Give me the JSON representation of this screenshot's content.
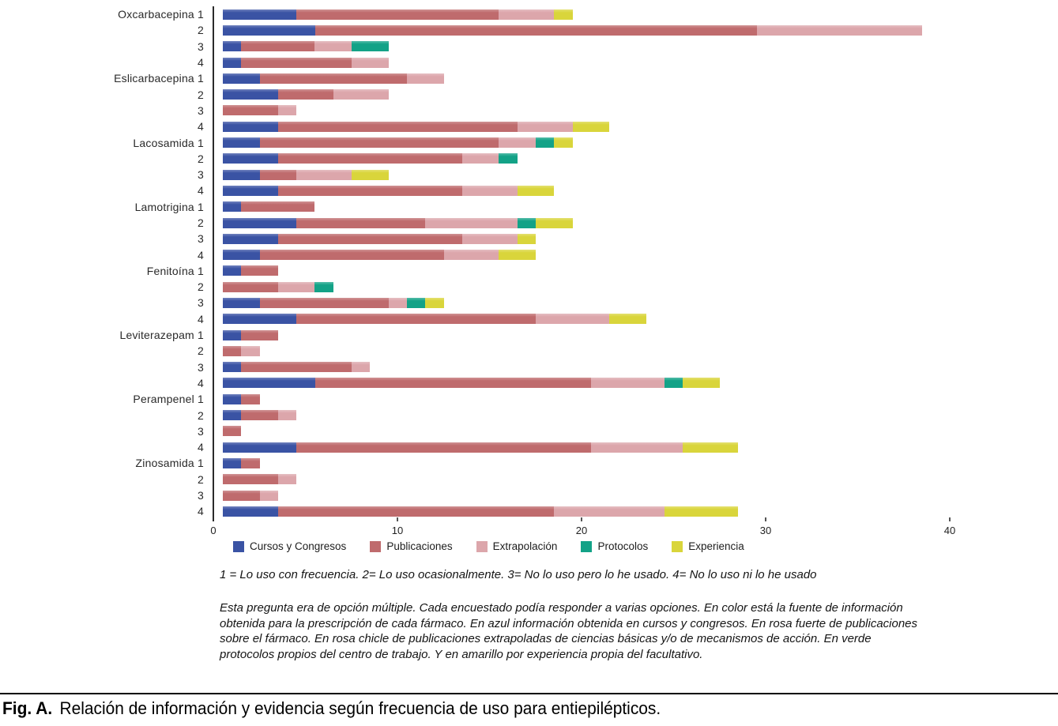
{
  "figure": {
    "footnote": "1 = Lo uso con frecuencia. 2= Lo uso ocasionalmente. 3= No lo uso pero lo he usado. 4= No lo uso ni lo he usado",
    "description": "Esta pregunta era de opción múltiple. Cada encuestado podía responder a varias opciones. En color está la fuente de información obtenida para la prescripción de cada fármaco. En azul información obtenida en cursos y congresos. En rosa fuerte de publicaciones sobre el fármaco. En rosa chicle de publicaciones extrapoladas de ciencias básicas y/o de mecanismos de acción. En verde protocolos propios del centro de trabajo. Y en amarillo por experiencia propia del facultativo.",
    "caption_prefix": "Fig. A.",
    "caption_text": "Relación de información y evidencia según frecuencia de uso para entiepilépticos."
  },
  "chart_data": {
    "type": "bar",
    "orientation": "horizontal",
    "stacked": true,
    "title": "",
    "xlabel": "",
    "ylabel": "",
    "xlim": [
      0,
      40
    ],
    "x_ticks": [
      0,
      10,
      20,
      30,
      40
    ],
    "grid": false,
    "legend_position": "bottom",
    "row_labels": [
      "1",
      "2",
      "3",
      "4"
    ],
    "series": [
      {
        "name": "Cursos y Congresos",
        "color": "#3a53a4"
      },
      {
        "name": "Publicaciones",
        "color": "#bf6b6d"
      },
      {
        "name": "Extrapolación",
        "color": "#dca6ab"
      },
      {
        "name": "Protocolos",
        "color": "#13a287"
      },
      {
        "name": "Experiencia",
        "color": "#d9d53b"
      }
    ],
    "groups": [
      {
        "drug": "Oxcarbacepina",
        "rows": [
          [
            4,
            11,
            3,
            0,
            1
          ],
          [
            5,
            24,
            9,
            0,
            0
          ],
          [
            1,
            4,
            2,
            2,
            0
          ],
          [
            1,
            6,
            2,
            0,
            0
          ]
        ]
      },
      {
        "drug": "Eslicarbacepina",
        "rows": [
          [
            2,
            8,
            2,
            0,
            0
          ],
          [
            3,
            3,
            3,
            0,
            0
          ],
          [
            0,
            3,
            1,
            0,
            0
          ],
          [
            3,
            13,
            3,
            0,
            2
          ]
        ]
      },
      {
        "drug": "Lacosamida",
        "rows": [
          [
            2,
            13,
            2,
            1,
            1
          ],
          [
            3,
            10,
            2,
            1,
            0
          ],
          [
            2,
            2,
            3,
            0,
            2
          ],
          [
            3,
            10,
            3,
            0,
            2
          ]
        ]
      },
      {
        "drug": "Lamotrigina",
        "rows": [
          [
            1,
            4,
            0,
            0,
            0
          ],
          [
            4,
            7,
            5,
            1,
            2
          ],
          [
            3,
            10,
            3,
            0,
            1
          ],
          [
            2,
            10,
            3,
            0,
            2
          ]
        ]
      },
      {
        "drug": "Fenitoína",
        "rows": [
          [
            1,
            2,
            0,
            0,
            0
          ],
          [
            0,
            3,
            2,
            1,
            0
          ],
          [
            2,
            7,
            1,
            1,
            1
          ],
          [
            4,
            13,
            4,
            0,
            2
          ]
        ]
      },
      {
        "drug": "Leviterazepam",
        "rows": [
          [
            1,
            2,
            0,
            0,
            0
          ],
          [
            0,
            1,
            1,
            0,
            0
          ],
          [
            1,
            6,
            1,
            0,
            0
          ],
          [
            5,
            15,
            4,
            1,
            2
          ]
        ]
      },
      {
        "drug": "Perampenel",
        "rows": [
          [
            1,
            1,
            0,
            0,
            0
          ],
          [
            1,
            2,
            1,
            0,
            0
          ],
          [
            0,
            1,
            0,
            0,
            0
          ],
          [
            4,
            16,
            5,
            0,
            3
          ]
        ]
      },
      {
        "drug": "Zinosamida",
        "rows": [
          [
            1,
            1,
            0,
            0,
            0
          ],
          [
            0,
            3,
            1,
            0,
            0
          ],
          [
            0,
            2,
            1,
            0,
            0
          ],
          [
            3,
            15,
            6,
            0,
            4
          ]
        ]
      }
    ]
  }
}
